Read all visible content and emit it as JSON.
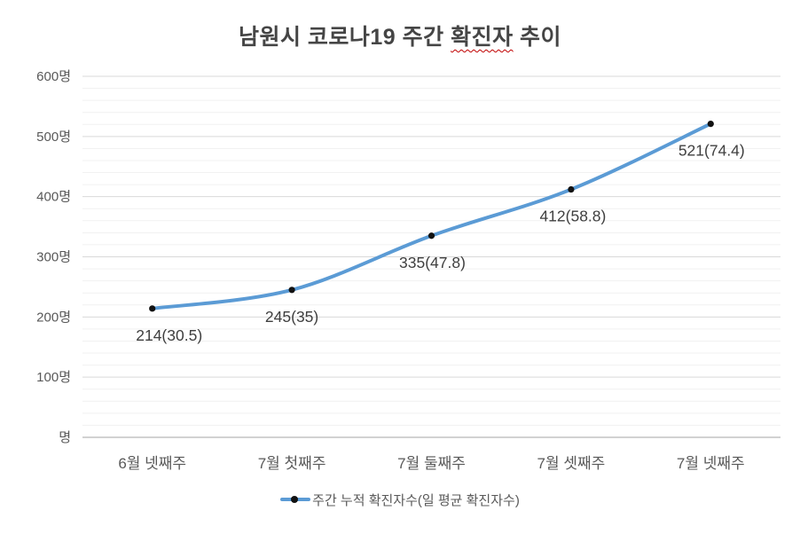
{
  "title": {
    "full": "남원시 코로나19 주간 확진자 추이",
    "prefix": "남원시 코로나19 주간 ",
    "spellcheck_word": "확진자",
    "suffix": " 추이",
    "color": "#454545",
    "spellcheck_underline_color": "#c00000"
  },
  "legend": {
    "label": "주간 누적 확진자수(일 평균 확진자수)",
    "line_color": "#5B9BD5",
    "dot_color": "#121212"
  },
  "chart_data": {
    "type": "line",
    "title": "남원시 코로나19 주간 확진자 추이",
    "categories": [
      "6월 넷째주",
      "7월 첫째주",
      "7월 둘째주",
      "7월 셋째주",
      "7월 넷째주"
    ],
    "series": [
      {
        "name": "주간 누적 확진자수(일 평균 확진자수)",
        "values": [
          214,
          245,
          335,
          412,
          521
        ],
        "daily_average_values": [
          30.5,
          35,
          47.8,
          58.8,
          74.4
        ],
        "data_labels": [
          "214(30.5)",
          "245(35)",
          "335(47.8)",
          "412(58.8)",
          "521(74.4)"
        ],
        "line_color": "#5B9BD5",
        "marker_color": "#121212",
        "smooth": true
      }
    ],
    "y_axis": {
      "unit_suffix": "명",
      "ylim": [
        0,
        600
      ],
      "major_unit": 100,
      "minor_unit": 20,
      "ticks": [
        {
          "value": 600,
          "label": "600명"
        },
        {
          "value": 500,
          "label": "500명"
        },
        {
          "value": 400,
          "label": "400명"
        },
        {
          "value": 300,
          "label": "300명"
        },
        {
          "value": 200,
          "label": "200명"
        },
        {
          "value": 100,
          "label": "100명"
        },
        {
          "value": 0,
          "label": "명"
        }
      ]
    },
    "grid": {
      "show_major": true,
      "show_minor": true,
      "major_color": "#d9d9d9",
      "minor_color": "#f1f1f1",
      "axis_line_color": "#c3c3c3"
    },
    "legend_position": "bottom",
    "colors": {
      "tick_label_color": "#595959",
      "category_label_color": "#595959",
      "data_label_color": "#3f3f3f"
    }
  }
}
